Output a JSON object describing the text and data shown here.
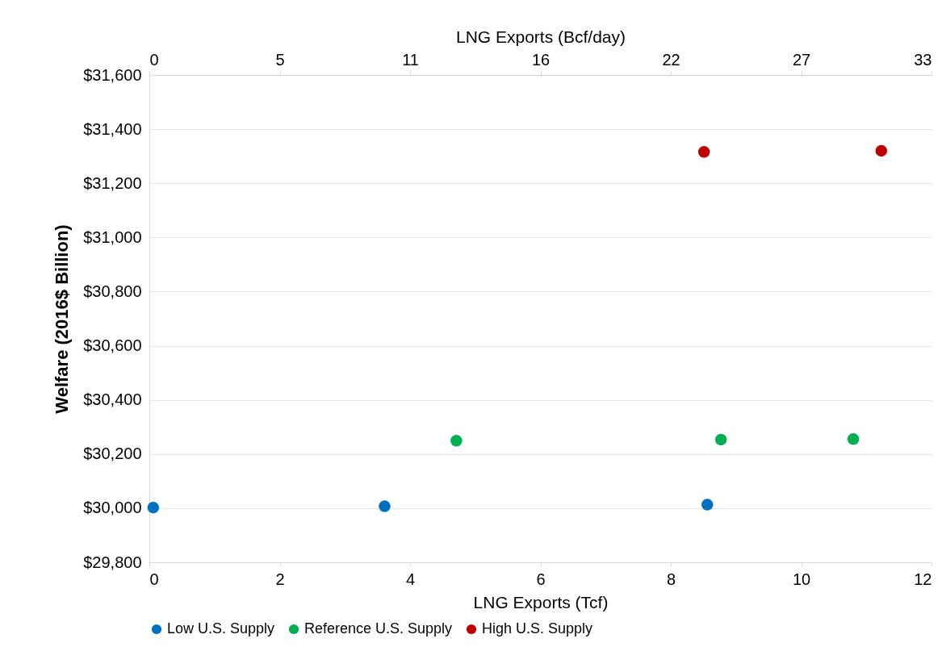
{
  "chart_data": {
    "type": "scatter",
    "xlabel": "LNG Exports  (Tcf)",
    "x2label": "LNG Exports  (Bcf/day)",
    "ylabel": "Welfare (2016$ Billion)",
    "xlim": [
      0,
      12
    ],
    "xticks": [
      0,
      2,
      4,
      6,
      8,
      10,
      12
    ],
    "x2lim": [
      0,
      33
    ],
    "x2ticks": [
      0,
      {
        "value": 5.5,
        "label": "5"
      },
      11,
      {
        "value": 16.5,
        "label": "16"
      },
      22,
      {
        "value": 27.5,
        "label": "27"
      },
      33
    ],
    "ylim": [
      29800,
      31600
    ],
    "yticks": [
      {
        "value": 29800,
        "label": "$29,800"
      },
      {
        "value": 30000,
        "label": "$30,000"
      },
      {
        "value": 30200,
        "label": "$30,200"
      },
      {
        "value": 30400,
        "label": "$30,400"
      },
      {
        "value": 30600,
        "label": "$30,600"
      },
      {
        "value": 30800,
        "label": "$30,800"
      },
      {
        "value": 31000,
        "label": "$31,000"
      },
      {
        "value": 31200,
        "label": "$31,200"
      },
      {
        "value": 31400,
        "label": "$31,400"
      },
      {
        "value": 31600,
        "label": "$31,600"
      }
    ],
    "grid": "y",
    "legend": "bottom",
    "marker": "circle",
    "series": [
      {
        "name": "Low U.S. Supply",
        "color": "#0070c0",
        "x": [
          0.06,
          3.61,
          8.56
        ],
        "values": [
          30002,
          30007,
          30013
        ]
      },
      {
        "name": "Reference U.S. Supply",
        "color": "#00b050",
        "x": [
          4.71,
          8.77,
          10.8
        ],
        "values": [
          30249,
          30253,
          30255
        ]
      },
      {
        "name": "High U.S. Supply",
        "color": "#c00000",
        "x": [
          8.51,
          11.23
        ],
        "values": [
          31316,
          31320
        ]
      }
    ]
  }
}
